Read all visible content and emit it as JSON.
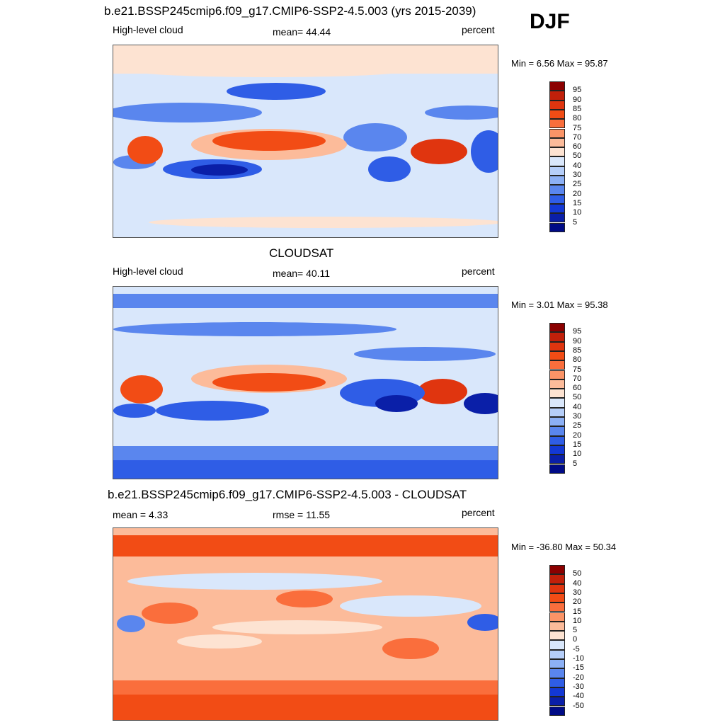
{
  "season": "DJF",
  "panels": [
    {
      "title": "b.e21.BSSP245cmip6.f09_g17.CMIP6-SSP2-4.5.003 (yrs 2015-2039)",
      "left_label": "High-level cloud",
      "center_label": "mean=  44.44",
      "right_label": "percent",
      "minmax": "Min =   6.56 Max =  95.87",
      "colorbar_labels": [
        "95",
        "90",
        "85",
        "80",
        "75",
        "70",
        "60",
        "50",
        "40",
        "30",
        "25",
        "20",
        "15",
        "10",
        "5"
      ],
      "colors": [
        "#8b0000",
        "#c1200a",
        "#e0350f",
        "#f24c15",
        "#fa6e3c",
        "#fb9467",
        "#fcbb9a",
        "#fde3d2",
        "#d9e7fb",
        "#b5cef9",
        "#8cb0f5",
        "#5a86ee",
        "#2f5de6",
        "#1338d4",
        "#0a1fa8",
        "#000b86"
      ]
    },
    {
      "title": "CLOUDSAT",
      "left_label": "High-level cloud",
      "center_label": "mean=  40.11",
      "right_label": "percent",
      "minmax": "Min =   3.01 Max =  95.38",
      "colorbar_labels": [
        "95",
        "90",
        "85",
        "80",
        "75",
        "70",
        "60",
        "50",
        "40",
        "30",
        "25",
        "20",
        "15",
        "10",
        "5"
      ],
      "colors": [
        "#8b0000",
        "#c1200a",
        "#e0350f",
        "#f24c15",
        "#fa6e3c",
        "#fb9467",
        "#fcbb9a",
        "#fde3d2",
        "#d9e7fb",
        "#b5cef9",
        "#8cb0f5",
        "#5a86ee",
        "#2f5de6",
        "#1338d4",
        "#0a1fa8",
        "#000b86"
      ]
    },
    {
      "title": "b.e21.BSSP245cmip6.f09_g17.CMIP6-SSP2-4.5.003 - CLOUDSAT",
      "left_label": "mean =   4.33",
      "center_label": "rmse =  11.55",
      "right_label": "percent",
      "minmax": "Min = -36.80 Max =  50.34",
      "colorbar_labels": [
        "50",
        "40",
        "30",
        "20",
        "15",
        "10",
        "5",
        "0",
        "-5",
        "-10",
        "-15",
        "-20",
        "-30",
        "-40",
        "-50"
      ],
      "colors": [
        "#8b0000",
        "#c1200a",
        "#e0350f",
        "#f24c15",
        "#fa6e3c",
        "#fb9467",
        "#fcbb9a",
        "#fde3d2",
        "#d9e7fb",
        "#b5cef9",
        "#8cb0f5",
        "#5a86ee",
        "#2f5de6",
        "#1338d4",
        "#0a1fa8",
        "#000b86"
      ]
    }
  ]
}
